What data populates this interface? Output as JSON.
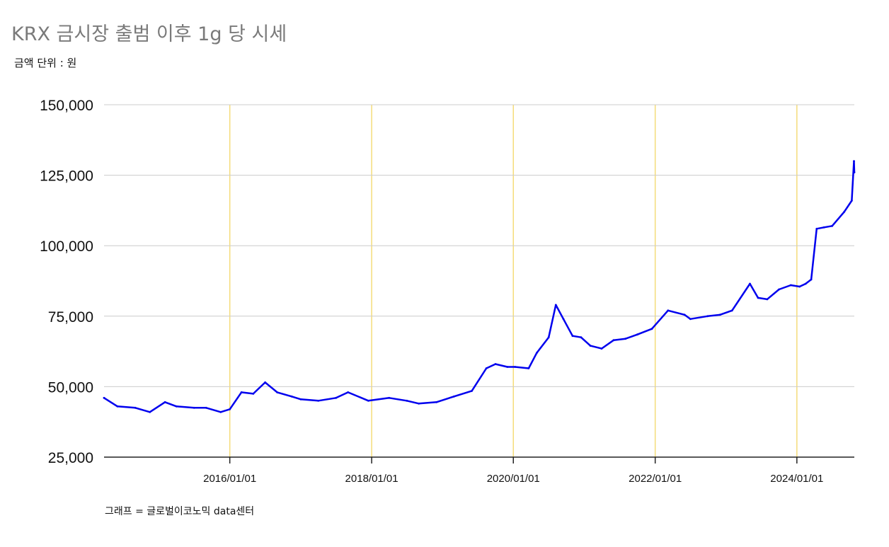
{
  "title": "KRX 금시장 출범 이후 1g 당 시세",
  "subtitle": "금액 단위 : 원",
  "footer": "그래프 = 글로벌이코노믹 data센터",
  "colors": {
    "line": "#0000ee",
    "year_marker": "#f5dc7a",
    "grid": "#cccccc",
    "axis": "#222222"
  },
  "chart_data": {
    "type": "line",
    "title": "KRX 금시장 출범 이후 1g 당 시세",
    "ylabel": "",
    "xlabel": "",
    "ylim": [
      25000,
      150000
    ],
    "xlim": [
      "2014-03-24",
      "2024-10-23"
    ],
    "yticks": [
      25000,
      50000,
      75000,
      100000,
      125000,
      150000
    ],
    "ytick_labels": [
      "25,000",
      "50,000",
      "75,000",
      "100,000",
      "125,000",
      "150,000"
    ],
    "xticks": [
      "2016-01-01",
      "2018-01-01",
      "2020-01-01",
      "2022-01-01",
      "2024-01-01"
    ],
    "xtick_labels": [
      "2016/01/01",
      "2018/01/01",
      "2020/01/01",
      "2022/01/01",
      "2024/01/01"
    ],
    "grid": {
      "horizontal": true,
      "vertical_year_markers": true
    },
    "legend": "none",
    "series": [
      {
        "x": [
          "2014-03-24",
          "2014-06-01",
          "2014-09-01",
          "2014-11-15",
          "2015-02-01",
          "2015-04-01",
          "2015-07-01",
          "2015-09-01",
          "2015-11-15",
          "2016-01-01",
          "2016-03-01",
          "2016-05-01",
          "2016-07-01",
          "2016-09-01",
          "2016-11-15",
          "2017-01-01",
          "2017-04-01",
          "2017-07-01",
          "2017-09-01",
          "2017-12-15",
          "2018-04-01",
          "2018-07-01",
          "2018-09-01",
          "2018-12-01",
          "2019-03-01",
          "2019-06-01",
          "2019-08-15",
          "2019-10-01",
          "2019-12-01",
          "2020-01-10",
          "2020-03-20",
          "2020-05-01",
          "2020-07-01",
          "2020-08-07",
          "2020-09-15",
          "2020-11-01",
          "2020-12-15",
          "2021-02-01",
          "2021-03-31",
          "2021-06-01",
          "2021-08-01",
          "2021-10-01",
          "2021-12-15",
          "2022-03-08",
          "2022-06-01",
          "2022-07-01",
          "2022-09-28",
          "2022-12-01",
          "2023-02-01",
          "2023-05-04",
          "2023-06-15",
          "2023-08-01",
          "2023-10-01",
          "2023-12-01",
          "2024-01-15",
          "2024-02-15",
          "2024-03-15",
          "2024-04-12",
          "2024-05-20",
          "2024-07-01",
          "2024-09-01",
          "2024-10-10",
          "2024-10-21",
          "2024-10-23"
        ],
        "y": [
          46000,
          43000,
          42500,
          41000,
          44500,
          43000,
          42500,
          42500,
          41000,
          42000,
          48000,
          47500,
          51500,
          48000,
          46500,
          45500,
          45000,
          46000,
          48000,
          45000,
          46000,
          45000,
          44000,
          44500,
          46500,
          48500,
          56500,
          58000,
          57000,
          57000,
          56500,
          62000,
          67500,
          79000,
          74000,
          68000,
          67500,
          64500,
          63500,
          66500,
          67000,
          68500,
          70500,
          77000,
          75500,
          74000,
          75000,
          75500,
          77000,
          86500,
          81500,
          81000,
          84500,
          86000,
          85500,
          86500,
          88000,
          106000,
          106500,
          107000,
          112000,
          116000,
          130000,
          126000
        ]
      }
    ]
  }
}
